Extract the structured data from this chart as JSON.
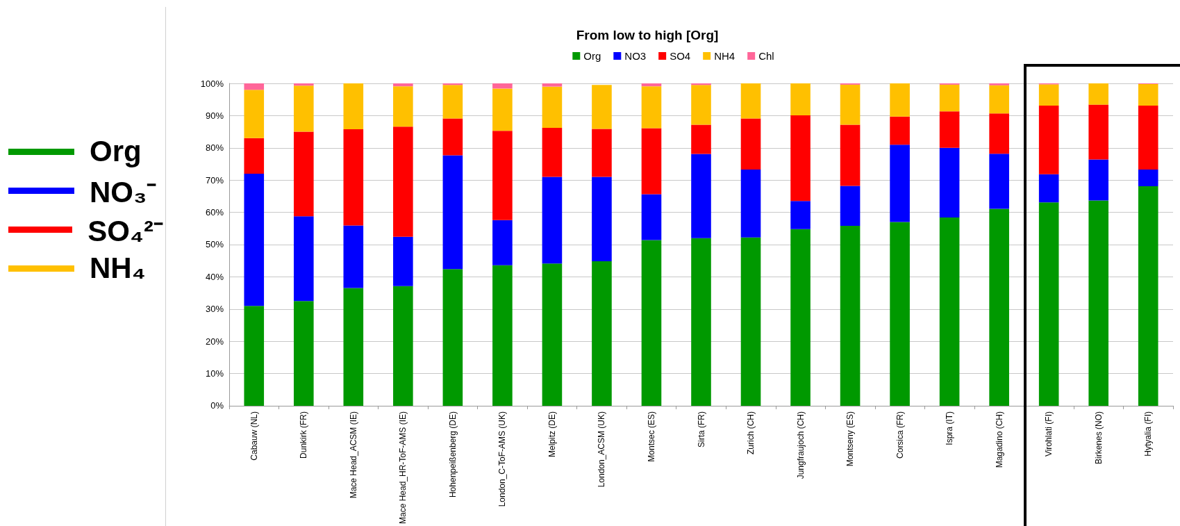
{
  "chart_data": {
    "type": "bar",
    "title": "From low to high [Org]",
    "stacked": true,
    "grid": "y",
    "legend": "top",
    "categories": [
      "Cabauw (NL)",
      "Dunkirk (FR)",
      "Mace Head_ACSM (IE)",
      "Mace Head_HR-ToF-AMS (IE)",
      "Hohenpeißenberg (DE)",
      "London_C-ToF-AMS (UK)",
      "Melpitz (DE)",
      "London_ACSM (UK)",
      "Montsec (ES)",
      "Sirta (FR)",
      "Zurich (CH)",
      "Jungfraujoch (CH)",
      "Montseny (ES)",
      "Corsica (FR)",
      "Ispra (IT)",
      "Magadino (CH)",
      "Virohlati (FI)",
      "Birkenes (NO)",
      "Hytyalia (FI)"
    ],
    "series": [
      {
        "name": "Org",
        "color": "#009900",
        "values": [
          31,
          32.5,
          36.5,
          37.1,
          42.4,
          43.6,
          44.1,
          44.8,
          51.4,
          52,
          52.2,
          54.8,
          55.8,
          57,
          58.4,
          61.1,
          63.1,
          63.7,
          68.1
        ]
      },
      {
        "name": "NO3",
        "color": "#0000ff",
        "values": [
          41,
          26.3,
          19.4,
          15.3,
          35.3,
          14,
          26.9,
          26.2,
          14.2,
          26.1,
          21.1,
          8.7,
          12.4,
          24,
          21.6,
          17.1,
          8.7,
          12.7,
          5.2
        ]
      },
      {
        "name": "SO4",
        "color": "#ff0000",
        "values": [
          11,
          26.2,
          29.9,
          34.2,
          11.4,
          27.7,
          15.2,
          14.9,
          20.5,
          9.1,
          15.8,
          26.6,
          19,
          8.7,
          11.3,
          12.5,
          21.3,
          17,
          19.8
        ]
      },
      {
        "name": "NH4",
        "color": "#ffc000",
        "values": [
          15,
          14.3,
          14.2,
          12.5,
          10.4,
          13.1,
          12.8,
          13.6,
          13,
          12.3,
          10.9,
          9.9,
          12.4,
          10.3,
          8.3,
          8.7,
          6.6,
          6.6,
          6.7
        ]
      },
      {
        "name": "Chl",
        "color": "#ff6699",
        "values": [
          2,
          0.7,
          0,
          0.9,
          0.5,
          1.6,
          1,
          0,
          0.9,
          0.5,
          0,
          0,
          0.4,
          0,
          0.4,
          0.6,
          0.3,
          0,
          0.2
        ]
      }
    ],
    "ylim": [
      0,
      100
    ],
    "yticks": [
      {
        "value": 0,
        "label": "0%"
      },
      {
        "value": 10,
        "label": "10%"
      },
      {
        "value": 20,
        "label": "20%"
      },
      {
        "value": 30,
        "label": "30%"
      },
      {
        "value": 40,
        "label": "40%"
      },
      {
        "value": 50,
        "label": "50%"
      },
      {
        "value": 60,
        "label": "60%"
      },
      {
        "value": 70,
        "label": "70%"
      },
      {
        "value": 80,
        "label": "80%"
      },
      {
        "value": 90,
        "label": "90%"
      },
      {
        "value": 100,
        "label": "100%"
      }
    ],
    "annotations": [
      "Org",
      "NO₃⁻",
      "SO₄²⁻",
      "NH₄"
    ]
  }
}
